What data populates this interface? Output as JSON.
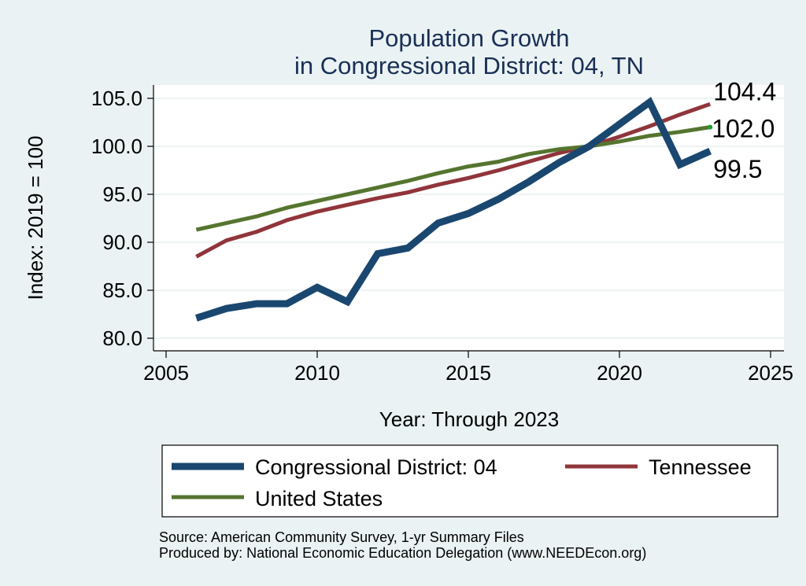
{
  "chart_data": {
    "type": "line",
    "title": [
      "Population Growth",
      "in Congressional District: 04, TN"
    ],
    "xlabel": "Year: Through 2023",
    "ylabel": "Index: 2019 = 100",
    "xlim": [
      2005,
      2025
    ],
    "ylim": [
      80,
      105
    ],
    "xticks": [
      2005,
      2010,
      2015,
      2020,
      2025
    ],
    "yticks": [
      80,
      85,
      90,
      95,
      100,
      105
    ],
    "ytick_labels": [
      "80.0",
      "85.0",
      "90.0",
      "95.0",
      "100.0",
      "105.0"
    ],
    "x": [
      2006,
      2007,
      2008,
      2009,
      2010,
      2011,
      2012,
      2013,
      2014,
      2015,
      2016,
      2017,
      2018,
      2019,
      2020,
      2021,
      2022,
      2023
    ],
    "series": [
      {
        "name": "Congressional District: 04",
        "color": "#1a476f",
        "values": [
          82.1,
          83.1,
          83.6,
          83.6,
          85.3,
          83.8,
          88.8,
          89.4,
          92.0,
          93.0,
          94.5,
          96.3,
          98.3,
          100.0,
          102.3,
          104.6,
          98.1,
          99.5
        ],
        "end_label": "99.5"
      },
      {
        "name": "Tennessee",
        "color": "#90353b",
        "values": [
          88.5,
          90.2,
          91.1,
          92.3,
          93.2,
          93.9,
          94.6,
          95.2,
          96.0,
          96.7,
          97.5,
          98.4,
          99.3,
          100.0,
          101.0,
          102.1,
          103.3,
          104.4
        ],
        "end_label": "104.4"
      },
      {
        "name": "United States",
        "color": "#55752f",
        "values": [
          91.3,
          92.0,
          92.7,
          93.6,
          94.3,
          95.0,
          95.7,
          96.4,
          97.2,
          97.9,
          98.4,
          99.2,
          99.7,
          100.0,
          100.5,
          101.1,
          101.5,
          102.0
        ],
        "end_label": "102.0"
      }
    ],
    "legend": {
      "placement": "bottom",
      "entries": [
        "Congressional District: 04",
        "Tennessee",
        "United States"
      ]
    },
    "grid": true
  },
  "source": {
    "line1": "Source: American Community Survey, 1-yr Summary Files",
    "line2": "Produced by: National Economic Education Delegation (www.NEEDEcon.org)"
  }
}
